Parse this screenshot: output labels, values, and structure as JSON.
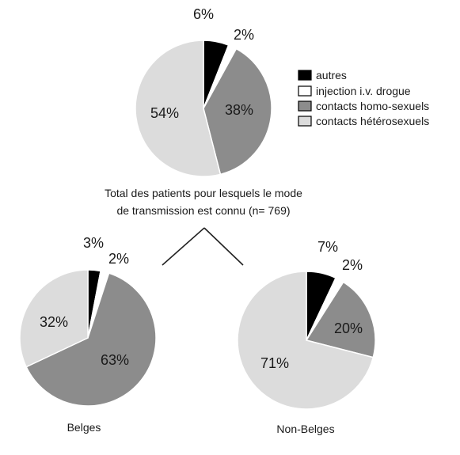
{
  "chart_data": [
    {
      "type": "pie",
      "title": "Total des patients pour lesquels le mode",
      "subtitle": "de transmission est connu (n= 769)",
      "slices": [
        {
          "label": "autres",
          "value": 6,
          "text": "6%"
        },
        {
          "label": "injection i.v. drogue",
          "value": 2,
          "text": "2%"
        },
        {
          "label": "contacts homo-sexuels",
          "value": 38,
          "text": "38%"
        },
        {
          "label": "contacts hétérosexuels",
          "value": 54,
          "text": "54%"
        }
      ]
    },
    {
      "type": "pie",
      "title": "Belges",
      "slices": [
        {
          "label": "autres",
          "value": 3,
          "text": "3%"
        },
        {
          "label": "injection i.v. drogue",
          "value": 2,
          "text": "2%"
        },
        {
          "label": "contacts homo-sexuels",
          "value": 63,
          "text": "63%"
        },
        {
          "label": "contacts hétérosexuels",
          "value": 32,
          "text": "32%"
        }
      ]
    },
    {
      "type": "pie",
      "title": "Non-Belges",
      "slices": [
        {
          "label": "autres",
          "value": 7,
          "text": "7%"
        },
        {
          "label": "injection i.v. drogue",
          "value": 2,
          "text": "2%"
        },
        {
          "label": "contacts homo-sexuels",
          "value": 20,
          "text": "20%"
        },
        {
          "label": "contacts hétérosexuels",
          "value": 71,
          "text": "71%"
        }
      ]
    }
  ],
  "legend": [
    {
      "label": "autres",
      "color": "#000000"
    },
    {
      "label": "injection i.v. drogue",
      "color": "#ffffff"
    },
    {
      "label": "contacts homo-sexuels",
      "color": "#8c8c8c"
    },
    {
      "label": "contacts hétérosexuels",
      "color": "#dcdcdc"
    }
  ]
}
